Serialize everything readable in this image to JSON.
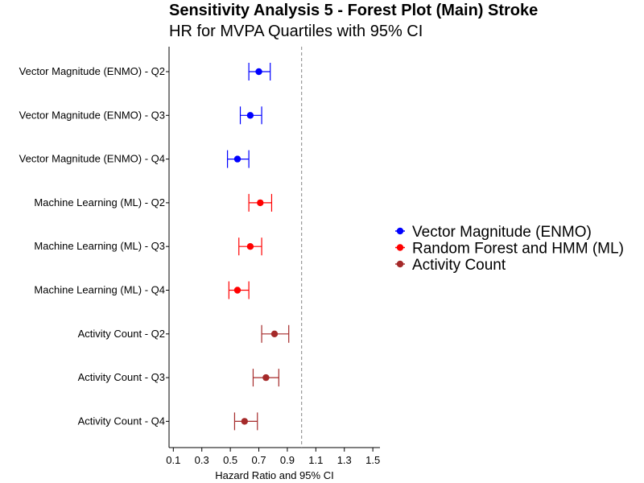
{
  "chart_data": {
    "type": "scatter",
    "subtype": "forest-plot",
    "title": "Sensitivity Analysis 5 - Forest Plot (Main) Stroke",
    "subtitle": "HR for MVPA Quartiles with 95% CI",
    "xlabel": "Hazard Ratio and 95% CI",
    "ylabel": "",
    "xlim": [
      0.07,
      1.55
    ],
    "xticks": [
      "0.1",
      "0.3",
      "0.5",
      "0.7",
      "0.9",
      "1.1",
      "1.3",
      "1.5"
    ],
    "reference_line": {
      "x": 1.0,
      "style": "dashed",
      "color": "#999999"
    },
    "grid": false,
    "legend_position": "right",
    "legend": [
      {
        "label": "Vector Magnitude (ENMO)",
        "color": "#0000ff"
      },
      {
        "label": "Random Forest and HMM (ML)",
        "color": "#ff0000"
      },
      {
        "label": "Activity Count",
        "color": "#a52a2a"
      }
    ],
    "series": [
      {
        "label": "Vector Magnitude (ENMO) - Q2",
        "group": 0,
        "hr": 0.7,
        "lower": 0.63,
        "upper": 0.78
      },
      {
        "label": "Vector Magnitude (ENMO) - Q3",
        "group": 0,
        "hr": 0.64,
        "lower": 0.57,
        "upper": 0.72
      },
      {
        "label": "Vector Magnitude (ENMO) - Q4",
        "group": 0,
        "hr": 0.55,
        "lower": 0.48,
        "upper": 0.63
      },
      {
        "label": "Machine Learning (ML) - Q2",
        "group": 1,
        "hr": 0.71,
        "lower": 0.63,
        "upper": 0.79
      },
      {
        "label": "Machine Learning (ML) - Q3",
        "group": 1,
        "hr": 0.64,
        "lower": 0.56,
        "upper": 0.72
      },
      {
        "label": "Machine Learning (ML) - Q4",
        "group": 1,
        "hr": 0.55,
        "lower": 0.49,
        "upper": 0.63
      },
      {
        "label": "Activity Count - Q2",
        "group": 2,
        "hr": 0.81,
        "lower": 0.72,
        "upper": 0.91
      },
      {
        "label": "Activity Count - Q3",
        "group": 2,
        "hr": 0.75,
        "lower": 0.66,
        "upper": 0.84
      },
      {
        "label": "Activity Count - Q4",
        "group": 2,
        "hr": 0.6,
        "lower": 0.53,
        "upper": 0.69
      }
    ]
  }
}
